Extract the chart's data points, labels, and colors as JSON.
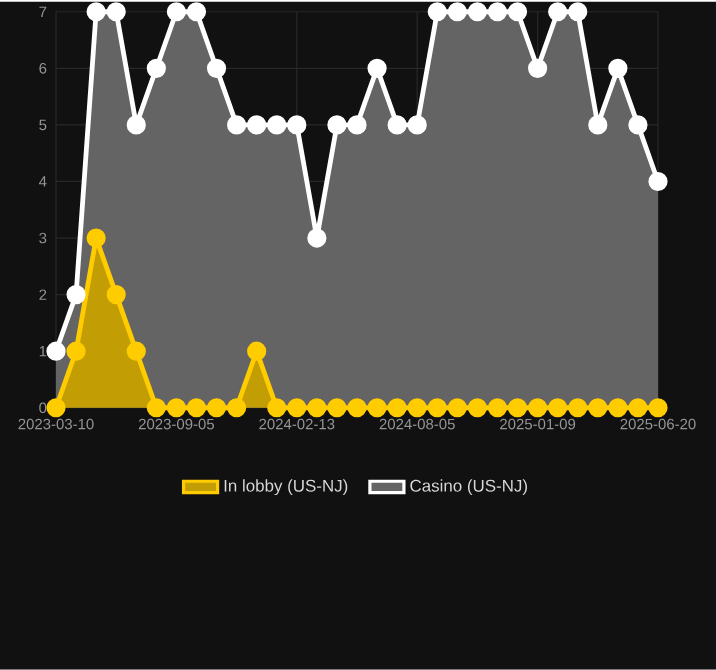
{
  "chart_data": {
    "type": "area",
    "categories": [
      "2023-03-10",
      null,
      null,
      null,
      null,
      null,
      "2023-09-05",
      null,
      null,
      null,
      null,
      null,
      "2024-02-13",
      null,
      null,
      null,
      null,
      null,
      "2024-08-05",
      null,
      null,
      null,
      null,
      null,
      "2025-01-09",
      null,
      null,
      null,
      null,
      null,
      "2025-06-20"
    ],
    "series": [
      {
        "name": "In lobby (US-NJ)",
        "color": "#ffcc00",
        "values": [
          0,
          1,
          3,
          2,
          1,
          0,
          0,
          0,
          0,
          0,
          1,
          0,
          0,
          0,
          0,
          0,
          0,
          0,
          0,
          0,
          0,
          0,
          0,
          0,
          0,
          0,
          0,
          0,
          0,
          0,
          0
        ]
      },
      {
        "name": "Casino (US-NJ)",
        "color": "#ffffff",
        "values": [
          1,
          2,
          7,
          7,
          5,
          6,
          7,
          7,
          6,
          5,
          5,
          5,
          5,
          3,
          5,
          5,
          6,
          5,
          5,
          7,
          7,
          7,
          7,
          7,
          6,
          7,
          7,
          5,
          6,
          5,
          4
        ]
      }
    ],
    "ylim": [
      0,
      7
    ],
    "yticks": [
      0,
      1,
      2,
      3,
      4,
      5,
      6,
      7
    ],
    "grid": true,
    "legend": "bottom",
    "marker": "circle",
    "line_style": "solid"
  }
}
